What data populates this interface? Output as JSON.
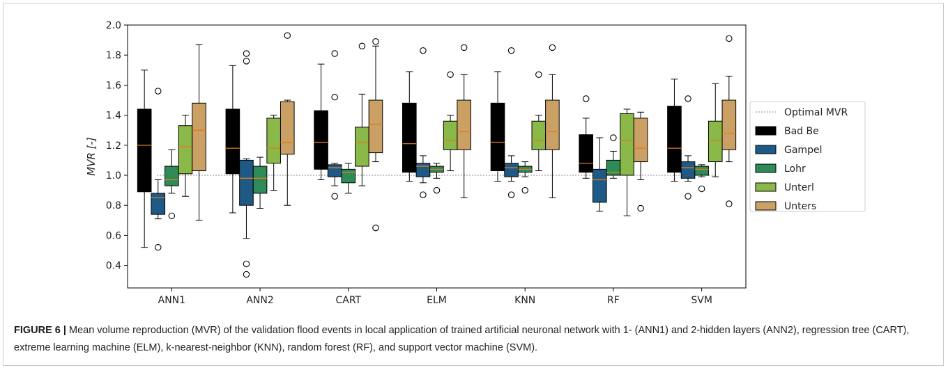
{
  "caption": {
    "label": "FIGURE 6 |",
    "text": " Mean volume reproduction (MVR) of the validation flood events in local application of trained artificial neuronal network with 1- (ANN1) and 2-hidden layers (ANN2), regression tree (CART), extreme learning machine (ELM), k-nearest-neighbor (KNN), random forest (RF), and support vector machine (SVM)."
  },
  "chart_data": {
    "type": "box",
    "ylabel": "MVR [-]",
    "ylim": [
      0.25,
      2.0
    ],
    "yticks": [
      "0.4",
      "0.6",
      "0.8",
      "1.0",
      "1.2",
      "1.4",
      "1.6",
      "1.8",
      "2.0"
    ],
    "categories": [
      "ANN1",
      "ANN2",
      "CART",
      "ELM",
      "KNN",
      "RF",
      "SVM"
    ],
    "reference_line": {
      "name": "Optimal MVR",
      "value": 1.0
    },
    "legend_position": "right",
    "colors": {
      "median": "#e07b1a",
      "reference": "#888888"
    },
    "series": [
      {
        "name": "Bad Be",
        "color": "#000000",
        "boxes": [
          {
            "wlo": 0.52,
            "q1": 0.89,
            "med": 1.2,
            "q3": 1.44,
            "whi": 1.7,
            "out": []
          },
          {
            "wlo": 0.75,
            "q1": 1.01,
            "med": 1.18,
            "q3": 1.44,
            "whi": 1.73,
            "out": []
          },
          {
            "wlo": 0.97,
            "q1": 1.04,
            "med": 1.22,
            "q3": 1.43,
            "whi": 1.74,
            "out": []
          },
          {
            "wlo": 0.96,
            "q1": 1.02,
            "med": 1.21,
            "q3": 1.48,
            "whi": 1.69,
            "out": []
          },
          {
            "wlo": 0.96,
            "q1": 1.03,
            "med": 1.22,
            "q3": 1.48,
            "whi": 1.69,
            "out": []
          },
          {
            "wlo": 0.98,
            "q1": 1.02,
            "med": 1.08,
            "q3": 1.27,
            "whi": 1.38,
            "out": [
              1.51
            ]
          },
          {
            "wlo": 0.96,
            "q1": 1.02,
            "med": 1.18,
            "q3": 1.46,
            "whi": 1.64,
            "out": []
          }
        ]
      },
      {
        "name": "Gampel",
        "color": "#1f5a86",
        "boxes": [
          {
            "wlo": 0.71,
            "q1": 0.74,
            "med": 0.85,
            "q3": 0.88,
            "whi": 0.97,
            "out": [
              1.56,
              0.52
            ]
          },
          {
            "wlo": 0.58,
            "q1": 0.8,
            "med": 0.98,
            "q3": 1.1,
            "whi": 1.11,
            "out": [
              1.81,
              1.76,
              0.41,
              0.34
            ]
          },
          {
            "wlo": 0.93,
            "q1": 0.99,
            "med": 1.05,
            "q3": 1.07,
            "whi": 1.08,
            "out": [
              1.81,
              1.52,
              0.86
            ]
          },
          {
            "wlo": 0.95,
            "q1": 0.99,
            "med": 1.06,
            "q3": 1.08,
            "whi": 1.13,
            "out": [
              1.83,
              0.87
            ]
          },
          {
            "wlo": 0.96,
            "q1": 0.99,
            "med": 1.05,
            "q3": 1.08,
            "whi": 1.13,
            "out": [
              1.83,
              0.87
            ]
          },
          {
            "wlo": 0.76,
            "q1": 0.82,
            "med": 0.97,
            "q3": 1.04,
            "whi": 1.25,
            "out": []
          },
          {
            "wlo": 0.96,
            "q1": 0.98,
            "med": 1.05,
            "q3": 1.09,
            "whi": 1.13,
            "out": [
              1.51,
              0.86
            ]
          }
        ]
      },
      {
        "name": "Lohr",
        "color": "#2e8b57",
        "boxes": [
          {
            "wlo": 0.88,
            "q1": 0.93,
            "med": 0.97,
            "q3": 1.06,
            "whi": 1.17,
            "out": [
              0.73
            ]
          },
          {
            "wlo": 0.78,
            "q1": 0.88,
            "med": 0.98,
            "q3": 1.06,
            "whi": 1.12,
            "out": []
          },
          {
            "wlo": 0.88,
            "q1": 0.95,
            "med": 1.02,
            "q3": 1.04,
            "whi": 1.08,
            "out": []
          },
          {
            "wlo": 0.98,
            "q1": 1.02,
            "med": 1.04,
            "q3": 1.06,
            "whi": 1.08,
            "out": [
              0.9
            ]
          },
          {
            "wlo": 0.99,
            "q1": 1.02,
            "med": 1.04,
            "q3": 1.06,
            "whi": 1.09,
            "out": [
              0.9
            ]
          },
          {
            "wlo": 0.98,
            "q1": 1.0,
            "med": 1.02,
            "q3": 1.1,
            "whi": 1.16,
            "out": [
              1.25
            ]
          },
          {
            "wlo": 0.99,
            "q1": 1.0,
            "med": 1.04,
            "q3": 1.06,
            "whi": 1.07,
            "out": [
              0.91
            ]
          }
        ]
      },
      {
        "name": "Unterl",
        "color": "#8ab94a",
        "boxes": [
          {
            "wlo": 0.86,
            "q1": 1.01,
            "med": 1.19,
            "q3": 1.33,
            "whi": 1.4,
            "out": []
          },
          {
            "wlo": 0.9,
            "q1": 1.08,
            "med": 1.18,
            "q3": 1.38,
            "whi": 1.4,
            "out": []
          },
          {
            "wlo": 0.93,
            "q1": 1.06,
            "med": 1.22,
            "q3": 1.32,
            "whi": 1.54,
            "out": [
              1.86
            ]
          },
          {
            "wlo": 1.03,
            "q1": 1.17,
            "med": 1.23,
            "q3": 1.36,
            "whi": 1.4,
            "out": [
              1.67
            ]
          },
          {
            "wlo": 1.03,
            "q1": 1.17,
            "med": 1.23,
            "q3": 1.36,
            "whi": 1.4,
            "out": [
              1.67
            ]
          },
          {
            "wlo": 0.73,
            "q1": 1.0,
            "med": 1.23,
            "q3": 1.41,
            "whi": 1.44,
            "out": []
          },
          {
            "wlo": 0.99,
            "q1": 1.09,
            "med": 1.23,
            "q3": 1.36,
            "whi": 1.61,
            "out": []
          }
        ]
      },
      {
        "name": "Unters",
        "color": "#caa064",
        "boxes": [
          {
            "wlo": 0.7,
            "q1": 1.03,
            "med": 1.3,
            "q3": 1.48,
            "whi": 1.87,
            "out": []
          },
          {
            "wlo": 0.8,
            "q1": 1.14,
            "med": 1.22,
            "q3": 1.49,
            "whi": 1.5,
            "out": [
              1.93
            ]
          },
          {
            "wlo": 1.09,
            "q1": 1.15,
            "med": 1.34,
            "q3": 1.5,
            "whi": 1.86,
            "out": [
              1.89,
              0.65
            ]
          },
          {
            "wlo": 0.85,
            "q1": 1.17,
            "med": 1.29,
            "q3": 1.5,
            "whi": 1.67,
            "out": [
              1.85
            ]
          },
          {
            "wlo": 0.85,
            "q1": 1.17,
            "med": 1.29,
            "q3": 1.5,
            "whi": 1.67,
            "out": [
              1.85
            ]
          },
          {
            "wlo": 0.97,
            "q1": 1.09,
            "med": 1.18,
            "q3": 1.38,
            "whi": 1.42,
            "out": [
              0.78
            ]
          },
          {
            "wlo": 1.09,
            "q1": 1.17,
            "med": 1.28,
            "q3": 1.5,
            "whi": 1.66,
            "out": [
              1.91,
              0.81
            ]
          }
        ]
      }
    ]
  }
}
